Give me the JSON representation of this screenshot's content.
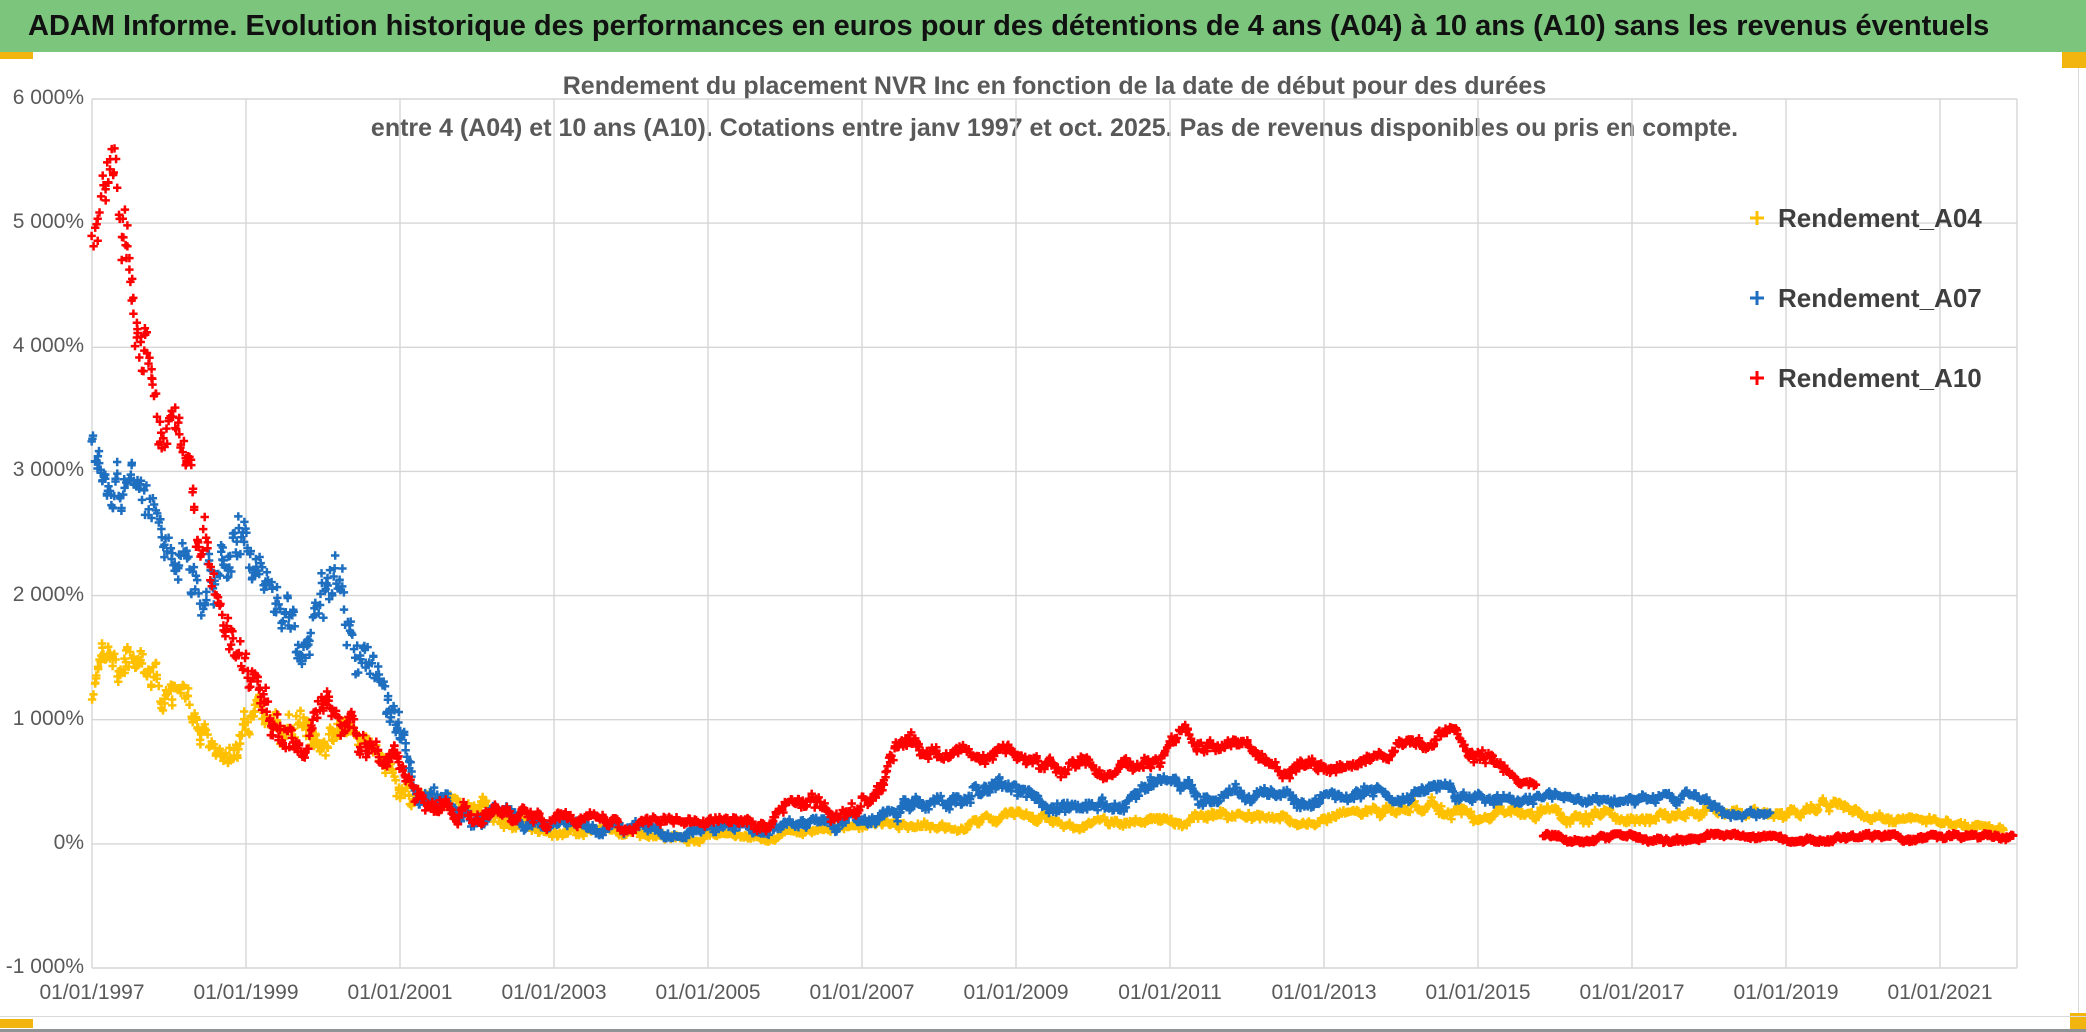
{
  "header": {
    "title": "ADAM Informe. Evolution historique des performances en euros pour des détentions de 4 ans (A04) à 10 ans (A10) sans les revenus éventuels",
    "bg_color": "#7cc57d"
  },
  "accents": {
    "handle_color": "#f2b40f"
  },
  "chart_data": {
    "type": "scatter",
    "marker": "plus",
    "grid": true,
    "legend_position": "right",
    "title_lines": [
      "Rendement du placement NVR Inc en fonction de la date de début pour des durées",
      "entre 4 (A04) et 10 ans (A10). Cotations entre janv 1997 et oct. 2025. Pas de revenus disponibles ou pris en compte."
    ],
    "xlim": [
      1997,
      2022
    ],
    "ylim": [
      -1000,
      6000
    ],
    "y_ticks": [
      {
        "label": "6 000%",
        "value": 6000
      },
      {
        "label": "5 000%",
        "value": 5000
      },
      {
        "label": "4 000%",
        "value": 4000
      },
      {
        "label": "3 000%",
        "value": 3000
      },
      {
        "label": "2 000%",
        "value": 2000
      },
      {
        "label": "1 000%",
        "value": 1000
      },
      {
        "label": "0%",
        "value": 0
      },
      {
        "label": "-1 000%",
        "value": -1000
      }
    ],
    "x_ticks": [
      {
        "label": "01/01/1997",
        "year": 1997
      },
      {
        "label": "01/01/1999",
        "year": 1999
      },
      {
        "label": "01/01/2001",
        "year": 2001
      },
      {
        "label": "01/01/2003",
        "year": 2003
      },
      {
        "label": "01/01/2005",
        "year": 2005
      },
      {
        "label": "01/01/2007",
        "year": 2007
      },
      {
        "label": "01/01/2009",
        "year": 2009
      },
      {
        "label": "01/01/2011",
        "year": 2011
      },
      {
        "label": "01/01/2013",
        "year": 2013
      },
      {
        "label": "01/01/2015",
        "year": 2015
      },
      {
        "label": "01/01/2017",
        "year": 2017
      },
      {
        "label": "01/01/2019",
        "year": 2019
      },
      {
        "label": "01/01/2021",
        "year": 2021
      }
    ],
    "series": [
      {
        "name": "Rendement_A04",
        "color": "#FFC000",
        "seed": 11,
        "segments": [
          {
            "density": 1.5,
            "env": [
              [
                1997.0,
                950,
                1350
              ],
              [
                1997.3,
                1350,
                1900
              ],
              [
                1997.6,
                1200,
                1750
              ],
              [
                1998.0,
                1000,
                1450
              ],
              [
                1998.4,
                800,
                1200
              ],
              [
                1998.8,
                650,
                1000
              ],
              [
                1999.2,
                800,
                1250
              ],
              [
                1999.6,
                850,
                1300
              ],
              [
                2000.0,
                700,
                1100
              ],
              [
                2000.4,
                600,
                950
              ],
              [
                2000.8,
                500,
                800
              ],
              [
                2001.1,
                280,
                520
              ],
              [
                2001.5,
                180,
                380
              ],
              [
                2002.0,
                200,
                400
              ],
              [
                2002.4,
                120,
                280
              ],
              [
                2003.0,
                60,
                180
              ],
              [
                2003.6,
                40,
                150
              ],
              [
                2004.3,
                20,
                110
              ],
              [
                2005.0,
                10,
                90
              ],
              [
                2005.6,
                15,
                95
              ],
              [
                2006.2,
                30,
                120
              ],
              [
                2006.8,
                60,
                150
              ],
              [
                2007.3,
                90,
                200
              ],
              [
                2007.7,
                130,
                240
              ],
              [
                2008.1,
                80,
                170
              ],
              [
                2008.7,
                130,
                250
              ],
              [
                2009.1,
                150,
                280
              ],
              [
                2009.5,
                100,
                210
              ],
              [
                2010.0,
                120,
                220
              ],
              [
                2010.6,
                160,
                280
              ],
              [
                2011.1,
                120,
                230
              ],
              [
                2011.6,
                150,
                270
              ],
              [
                2012.1,
                130,
                240
              ],
              [
                2012.7,
                140,
                250
              ],
              [
                2013.3,
                150,
                270
              ],
              [
                2013.9,
                180,
                320
              ],
              [
                2014.5,
                220,
                390
              ],
              [
                2015.0,
                180,
                320
              ],
              [
                2015.6,
                150,
                290
              ],
              [
                2016.2,
                160,
                300
              ],
              [
                2016.8,
                170,
                310
              ],
              [
                2017.4,
                180,
                320
              ],
              [
                2018.0,
                160,
                300
              ],
              [
                2018.7,
                150,
                280
              ],
              [
                2019.2,
                160,
                290
              ],
              [
                2019.5,
                220,
                380
              ],
              [
                2019.9,
                170,
                300
              ],
              [
                2020.4,
                130,
                240
              ],
              [
                2021.0,
                100,
                200
              ],
              [
                2021.5,
                85,
                170
              ],
              [
                2021.84,
                75,
                150
              ]
            ]
          }
        ]
      },
      {
        "name": "Rendement_A07",
        "color": "#1F6FC0",
        "seed": 22,
        "segments": [
          {
            "density": 1.5,
            "env": [
              [
                1997.0,
                2950,
                3550
              ],
              [
                1997.3,
                2700,
                3300
              ],
              [
                1997.6,
                2400,
                3000
              ],
              [
                1998.0,
                2000,
                2600
              ],
              [
                1998.3,
                1800,
                2450
              ],
              [
                1998.6,
                1900,
                2600
              ],
              [
                1998.85,
                2300,
                3250
              ],
              [
                1999.1,
                1700,
                2350
              ],
              [
                1999.4,
                1500,
                2150
              ],
              [
                1999.7,
                1450,
                2100
              ],
              [
                2000.0,
                1600,
                2500
              ],
              [
                2000.2,
                1500,
                2400
              ],
              [
                2000.5,
                1000,
                1700
              ],
              [
                2000.9,
                700,
                1200
              ],
              [
                2001.2,
                300,
                600
              ],
              [
                2001.6,
                180,
                420
              ],
              [
                2002.1,
                120,
                320
              ],
              [
                2002.7,
                90,
                260
              ],
              [
                2003.3,
                60,
                200
              ],
              [
                2004.0,
                50,
                180
              ],
              [
                2005.0,
                40,
                160
              ],
              [
                2006.0,
                60,
                190
              ],
              [
                2006.6,
                90,
                230
              ],
              [
                2007.2,
                150,
                320
              ],
              [
                2007.7,
                180,
                380
              ],
              [
                2008.2,
                200,
                400
              ],
              [
                2008.7,
                300,
                550
              ],
              [
                2009.0,
                320,
                560
              ],
              [
                2009.4,
                250,
                420
              ],
              [
                2009.9,
                280,
                440
              ],
              [
                2010.4,
                230,
                390
              ],
              [
                2010.7,
                330,
                520
              ],
              [
                2011.2,
                350,
                560
              ],
              [
                2011.6,
                260,
                430
              ],
              [
                2011.9,
                300,
                490
              ],
              [
                2012.3,
                280,
                430
              ],
              [
                2012.8,
                300,
                450
              ],
              [
                2013.3,
                290,
                440
              ],
              [
                2013.8,
                320,
                470
              ],
              [
                2014.3,
                350,
                500
              ],
              [
                2014.8,
                340,
                490
              ],
              [
                2015.3,
                320,
                460
              ],
              [
                2015.8,
                300,
                430
              ],
              [
                2016.3,
                270,
                390
              ],
              [
                2016.8,
                250,
                370
              ],
              [
                2017.3,
                280,
                400
              ],
              [
                2017.7,
                300,
                430
              ],
              [
                2018.1,
                230,
                340
              ],
              [
                2018.5,
                200,
                310
              ],
              [
                2018.8,
                230,
                320
              ]
            ]
          }
        ]
      },
      {
        "name": "Rendement_A10",
        "color": "#FF0000",
        "seed": 33,
        "segments": [
          {
            "density": 1.5,
            "env": [
              [
                1997.0,
                4400,
                5300
              ],
              [
                1997.3,
                4600,
                5650
              ],
              [
                1997.5,
                3800,
                4800
              ],
              [
                1997.75,
                3400,
                4400
              ],
              [
                1998.0,
                2800,
                3600
              ],
              [
                1998.3,
                2500,
                3300
              ],
              [
                1998.55,
                1400,
                2200
              ],
              [
                1998.8,
                1100,
                1750
              ],
              [
                1999.1,
                950,
                1450
              ],
              [
                1999.45,
                750,
                1250
              ],
              [
                1999.75,
                680,
                1100
              ],
              [
                2000.1,
                800,
                1250
              ],
              [
                2000.45,
                700,
                1050
              ],
              [
                2000.8,
                580,
                900
              ],
              [
                2001.15,
                280,
                550
              ],
              [
                2001.5,
                180,
                400
              ],
              [
                2002.0,
                150,
                380
              ],
              [
                2002.3,
                200,
                420
              ],
              [
                2002.8,
                120,
                300
              ],
              [
                2003.4,
                90,
                250
              ],
              [
                2004.0,
                80,
                230
              ],
              [
                2004.7,
                70,
                210
              ],
              [
                2005.3,
                80,
                220
              ],
              [
                2005.9,
                120,
                300
              ],
              [
                2006.2,
                200,
                420
              ],
              [
                2006.6,
                180,
                380
              ],
              [
                2006.95,
                250,
                480
              ],
              [
                2007.3,
                450,
                750
              ],
              [
                2007.65,
                650,
                930
              ],
              [
                2008.0,
                550,
                750
              ],
              [
                2008.3,
                620,
                800
              ],
              [
                2008.55,
                520,
                700
              ],
              [
                2008.95,
                700,
                910
              ],
              [
                2009.3,
                600,
                780
              ],
              [
                2009.7,
                520,
                700
              ],
              [
                2010.1,
                520,
                680
              ],
              [
                2010.5,
                580,
                740
              ],
              [
                2010.9,
                620,
                800
              ],
              [
                2011.25,
                800,
                1000
              ],
              [
                2011.6,
                620,
                800
              ],
              [
                2011.95,
                680,
                850
              ],
              [
                2012.4,
                520,
                680
              ],
              [
                2012.9,
                560,
                720
              ],
              [
                2013.4,
                600,
                760
              ],
              [
                2013.9,
                650,
                820
              ],
              [
                2014.4,
                720,
                900
              ],
              [
                2014.75,
                780,
                960
              ],
              [
                2015.1,
                550,
                760
              ],
              [
                2015.45,
                430,
                560
              ],
              [
                2015.75,
                400,
                490
              ]
            ]
          },
          {
            "density": 3,
            "env": [
              [
                2015.85,
                10,
                85
              ],
              [
                2021.95,
                10,
                85
              ]
            ]
          }
        ]
      }
    ]
  }
}
